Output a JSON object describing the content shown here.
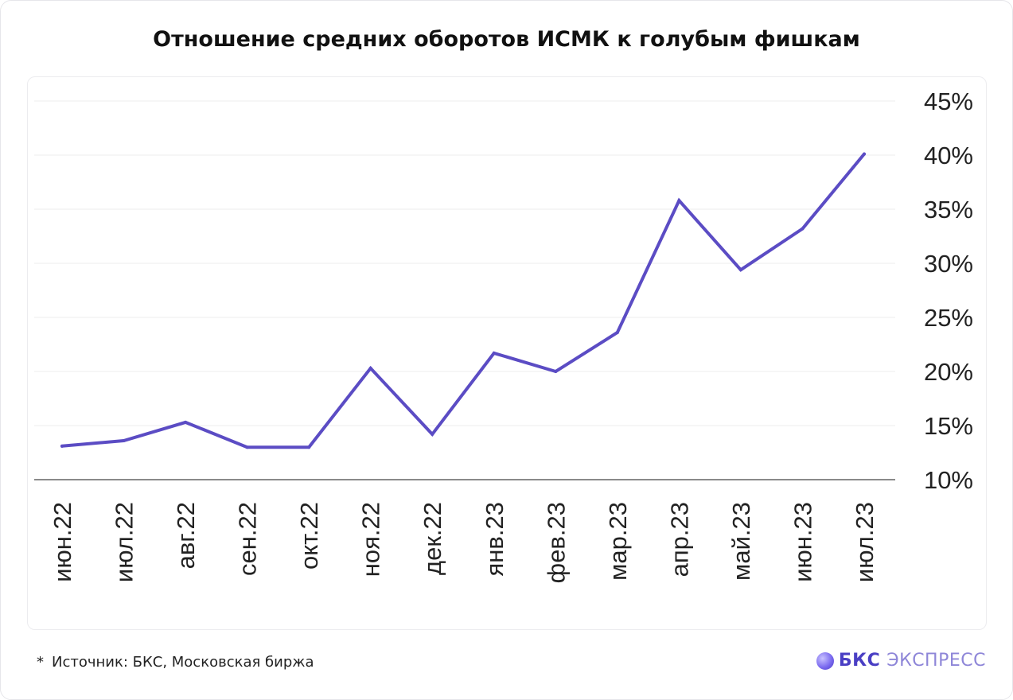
{
  "title": "Отношение средних оборотов ИСМК к голубым фишкам",
  "footer": {
    "marker": "*",
    "source": "Источник: БКС, Московская биржа"
  },
  "brand": {
    "name_bold": "БКС",
    "name_light": "ЭКСПРЕСС",
    "icon": "bcs-logo-icon"
  },
  "colors": {
    "line": "#5b4cc4",
    "grid": "#ececec",
    "baseline": "#8a8a8a",
    "text": "#222222"
  },
  "chart_data": {
    "type": "line",
    "title": "Отношение средних оборотов ИСМК к голубым фишкам",
    "xlabel": "",
    "ylabel": "",
    "categories": [
      "июн.22",
      "июл.22",
      "авг.22",
      "сен.22",
      "окт.22",
      "ноя.22",
      "дек.22",
      "янв.23",
      "фев.23",
      "мар.23",
      "апр.23",
      "май.23",
      "июн.23",
      "июл.23"
    ],
    "series": [
      {
        "values": [
          13.1,
          13.6,
          15.3,
          13.0,
          13.0,
          20.3,
          14.2,
          21.7,
          20.0,
          23.6,
          35.8,
          29.4,
          33.2,
          40.1
        ]
      }
    ],
    "ylim": [
      10,
      45
    ],
    "yticks": [
      "10%",
      "15%",
      "20%",
      "25%",
      "30%",
      "35%",
      "40%",
      "45%"
    ],
    "ytick_values": [
      10,
      15,
      20,
      25,
      30,
      35,
      40,
      45
    ],
    "y_axis_position": "right",
    "grid": true,
    "legend": "none"
  }
}
